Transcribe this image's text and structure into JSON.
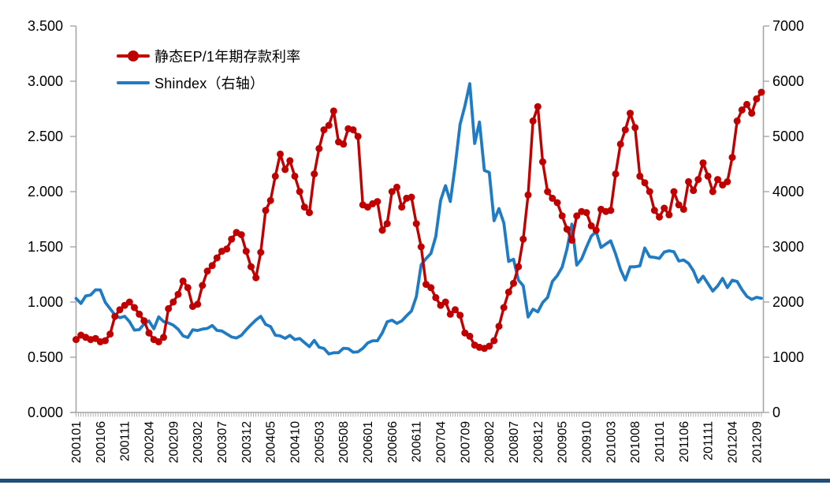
{
  "chart_data": {
    "type": "line",
    "title": "",
    "legend_position": "top-left-inside",
    "grid": false,
    "x_label_every": 5,
    "months": [
      "200101",
      "200102",
      "200103",
      "200104",
      "200105",
      "200106",
      "200107",
      "200108",
      "200109",
      "200110",
      "200111",
      "200112",
      "200201",
      "200202",
      "200203",
      "200204",
      "200205",
      "200206",
      "200207",
      "200208",
      "200209",
      "200210",
      "200211",
      "200212",
      "200301",
      "200302",
      "200303",
      "200304",
      "200305",
      "200306",
      "200307",
      "200308",
      "200309",
      "200310",
      "200311",
      "200312",
      "200401",
      "200402",
      "200403",
      "200404",
      "200405",
      "200406",
      "200407",
      "200408",
      "200409",
      "200410",
      "200411",
      "200412",
      "200501",
      "200502",
      "200503",
      "200504",
      "200505",
      "200506",
      "200507",
      "200508",
      "200509",
      "200510",
      "200511",
      "200512",
      "200601",
      "200602",
      "200603",
      "200604",
      "200605",
      "200606",
      "200607",
      "200608",
      "200609",
      "200610",
      "200611",
      "200612",
      "200701",
      "200702",
      "200703",
      "200704",
      "200705",
      "200706",
      "200707",
      "200708",
      "200709",
      "200710",
      "200711",
      "200712",
      "200801",
      "200802",
      "200803",
      "200804",
      "200805",
      "200806",
      "200807",
      "200808",
      "200809",
      "200810",
      "200811",
      "200812",
      "200901",
      "200902",
      "200903",
      "200904",
      "200905",
      "200906",
      "200907",
      "200908",
      "200909",
      "200910",
      "200911",
      "200912",
      "201001",
      "201002",
      "201003",
      "201004",
      "201005",
      "201006",
      "201007",
      "201008",
      "201009",
      "201010",
      "201011",
      "201012",
      "201101",
      "201102",
      "201103",
      "201104",
      "201105",
      "201106",
      "201107",
      "201108",
      "201109",
      "201110",
      "201111",
      "201112",
      "201201",
      "201202",
      "201203",
      "201204",
      "201205",
      "201206",
      "201207",
      "201208",
      "201209",
      "201210"
    ],
    "x_tick_labels": [
      "200101",
      "200106",
      "200111",
      "200204",
      "200209",
      "200302",
      "200307",
      "200312",
      "200405",
      "200410",
      "200503",
      "200508",
      "200601",
      "200606",
      "200611",
      "200704",
      "200709",
      "200802",
      "200807",
      "200812",
      "200905",
      "200910",
      "201003",
      "201008",
      "201101",
      "201106",
      "201111",
      "201204",
      "201209"
    ],
    "series": [
      {
        "name": "静态EP/1年期存款利率",
        "axis": "left",
        "color": "#C00000",
        "marker": "circle",
        "values": [
          0.66,
          0.7,
          0.68,
          0.66,
          0.67,
          0.64,
          0.65,
          0.71,
          0.87,
          0.93,
          0.97,
          1.0,
          0.95,
          0.89,
          0.83,
          0.72,
          0.66,
          0.64,
          0.68,
          0.94,
          1.0,
          1.07,
          1.19,
          1.13,
          0.96,
          0.98,
          1.15,
          1.28,
          1.33,
          1.4,
          1.46,
          1.48,
          1.57,
          1.63,
          1.61,
          1.46,
          1.32,
          1.22,
          1.45,
          1.83,
          1.92,
          2.14,
          2.34,
          2.2,
          2.28,
          2.14,
          2.0,
          1.86,
          1.81,
          2.16,
          2.39,
          2.56,
          2.6,
          2.73,
          2.45,
          2.43,
          2.57,
          2.56,
          2.5,
          1.88,
          1.86,
          1.89,
          1.91,
          1.65,
          1.71,
          2.0,
          2.04,
          1.86,
          1.94,
          1.95,
          1.71,
          1.5,
          1.16,
          1.13,
          1.04,
          0.97,
          1.0,
          0.89,
          0.93,
          0.88,
          0.72,
          0.69,
          0.61,
          0.59,
          0.58,
          0.6,
          0.65,
          0.78,
          0.95,
          1.09,
          1.17,
          1.32,
          1.57,
          1.97,
          2.64,
          2.77,
          2.27,
          2.0,
          1.94,
          1.9,
          1.78,
          1.66,
          1.56,
          1.78,
          1.82,
          1.81,
          1.69,
          1.65,
          1.84,
          1.82,
          1.83,
          2.16,
          2.43,
          2.56,
          2.71,
          2.58,
          2.14,
          2.08,
          2.0,
          1.83,
          1.77,
          1.85,
          1.79,
          2.0,
          1.88,
          1.84,
          2.09,
          2.01,
          2.11,
          2.26,
          2.14,
          2.0,
          2.11,
          2.06,
          2.09,
          2.31,
          2.64,
          2.74,
          2.79,
          2.71,
          2.84,
          2.9
        ]
      },
      {
        "name": "Shindex（右轴）",
        "axis": "right",
        "color": "#1F7BC4",
        "marker": "none",
        "values": [
          2066,
          1975,
          2112,
          2127,
          2221,
          2218,
          1996,
          1879,
          1765,
          1716,
          1742,
          1646,
          1491,
          1500,
          1603,
          1657,
          1515,
          1732,
          1646,
          1622,
          1581,
          1507,
          1388,
          1357,
          1499,
          1485,
          1510,
          1521,
          1576,
          1486,
          1476,
          1422,
          1367,
          1348,
          1397,
          1497,
          1590,
          1675,
          1742,
          1595,
          1555,
          1399,
          1387,
          1342,
          1396,
          1320,
          1340,
          1266,
          1191,
          1306,
          1181,
          1159,
          1060,
          1081,
          1083,
          1163,
          1155,
          1092,
          1099,
          1161,
          1258,
          1299,
          1298,
          1441,
          1641,
          1672,
          1613,
          1658,
          1752,
          1837,
          2099,
          2675,
          2786,
          2881,
          3183,
          3841,
          4109,
          3821,
          4471,
          5218,
          5552,
          5955,
          4872,
          5262,
          4384,
          4348,
          3473,
          3693,
          3433,
          2736,
          2776,
          2397,
          2294,
          1729,
          1871,
          1821,
          1991,
          2083,
          2373,
          2478,
          2633,
          2959,
          3412,
          2668,
          2779,
          2995,
          3195,
          3277,
          2989,
          3052,
          3109,
          2871,
          2592,
          2398,
          2638,
          2639,
          2656,
          2979,
          2820,
          2808,
          2790,
          2905,
          2928,
          2911,
          2743,
          2762,
          2701,
          2567,
          2359,
          2468,
          2333,
          2199,
          2293,
          2428,
          2262,
          2396,
          2372,
          2225,
          2103,
          2047,
          2086,
          2068
        ]
      }
    ],
    "left_axis": {
      "min": 0,
      "max": 3.5,
      "step": 0.5,
      "tick_labels": [
        "0.000",
        "0.500",
        "1.000",
        "1.500",
        "2.000",
        "2.500",
        "3.000",
        "3.500"
      ]
    },
    "right_axis": {
      "min": 0,
      "max": 7000,
      "step": 1000,
      "tick_labels": [
        "0",
        "1000",
        "2000",
        "3000",
        "4000",
        "5000",
        "6000",
        "7000"
      ]
    }
  },
  "legend": {
    "items": [
      {
        "label": "静态EP/1年期存款利率",
        "color": "#C00000",
        "marker": "line-dot"
      },
      {
        "label": "Shindex（右轴）",
        "color": "#1F7BC4",
        "marker": "line"
      }
    ]
  },
  "colors": {
    "red_series": "#C00000",
    "blue_series": "#1F7BC4",
    "axis_line": "#A6A6A6",
    "label_text": "#000000",
    "bottom_bar": "#1F4E79",
    "background": "#FFFFFF"
  }
}
